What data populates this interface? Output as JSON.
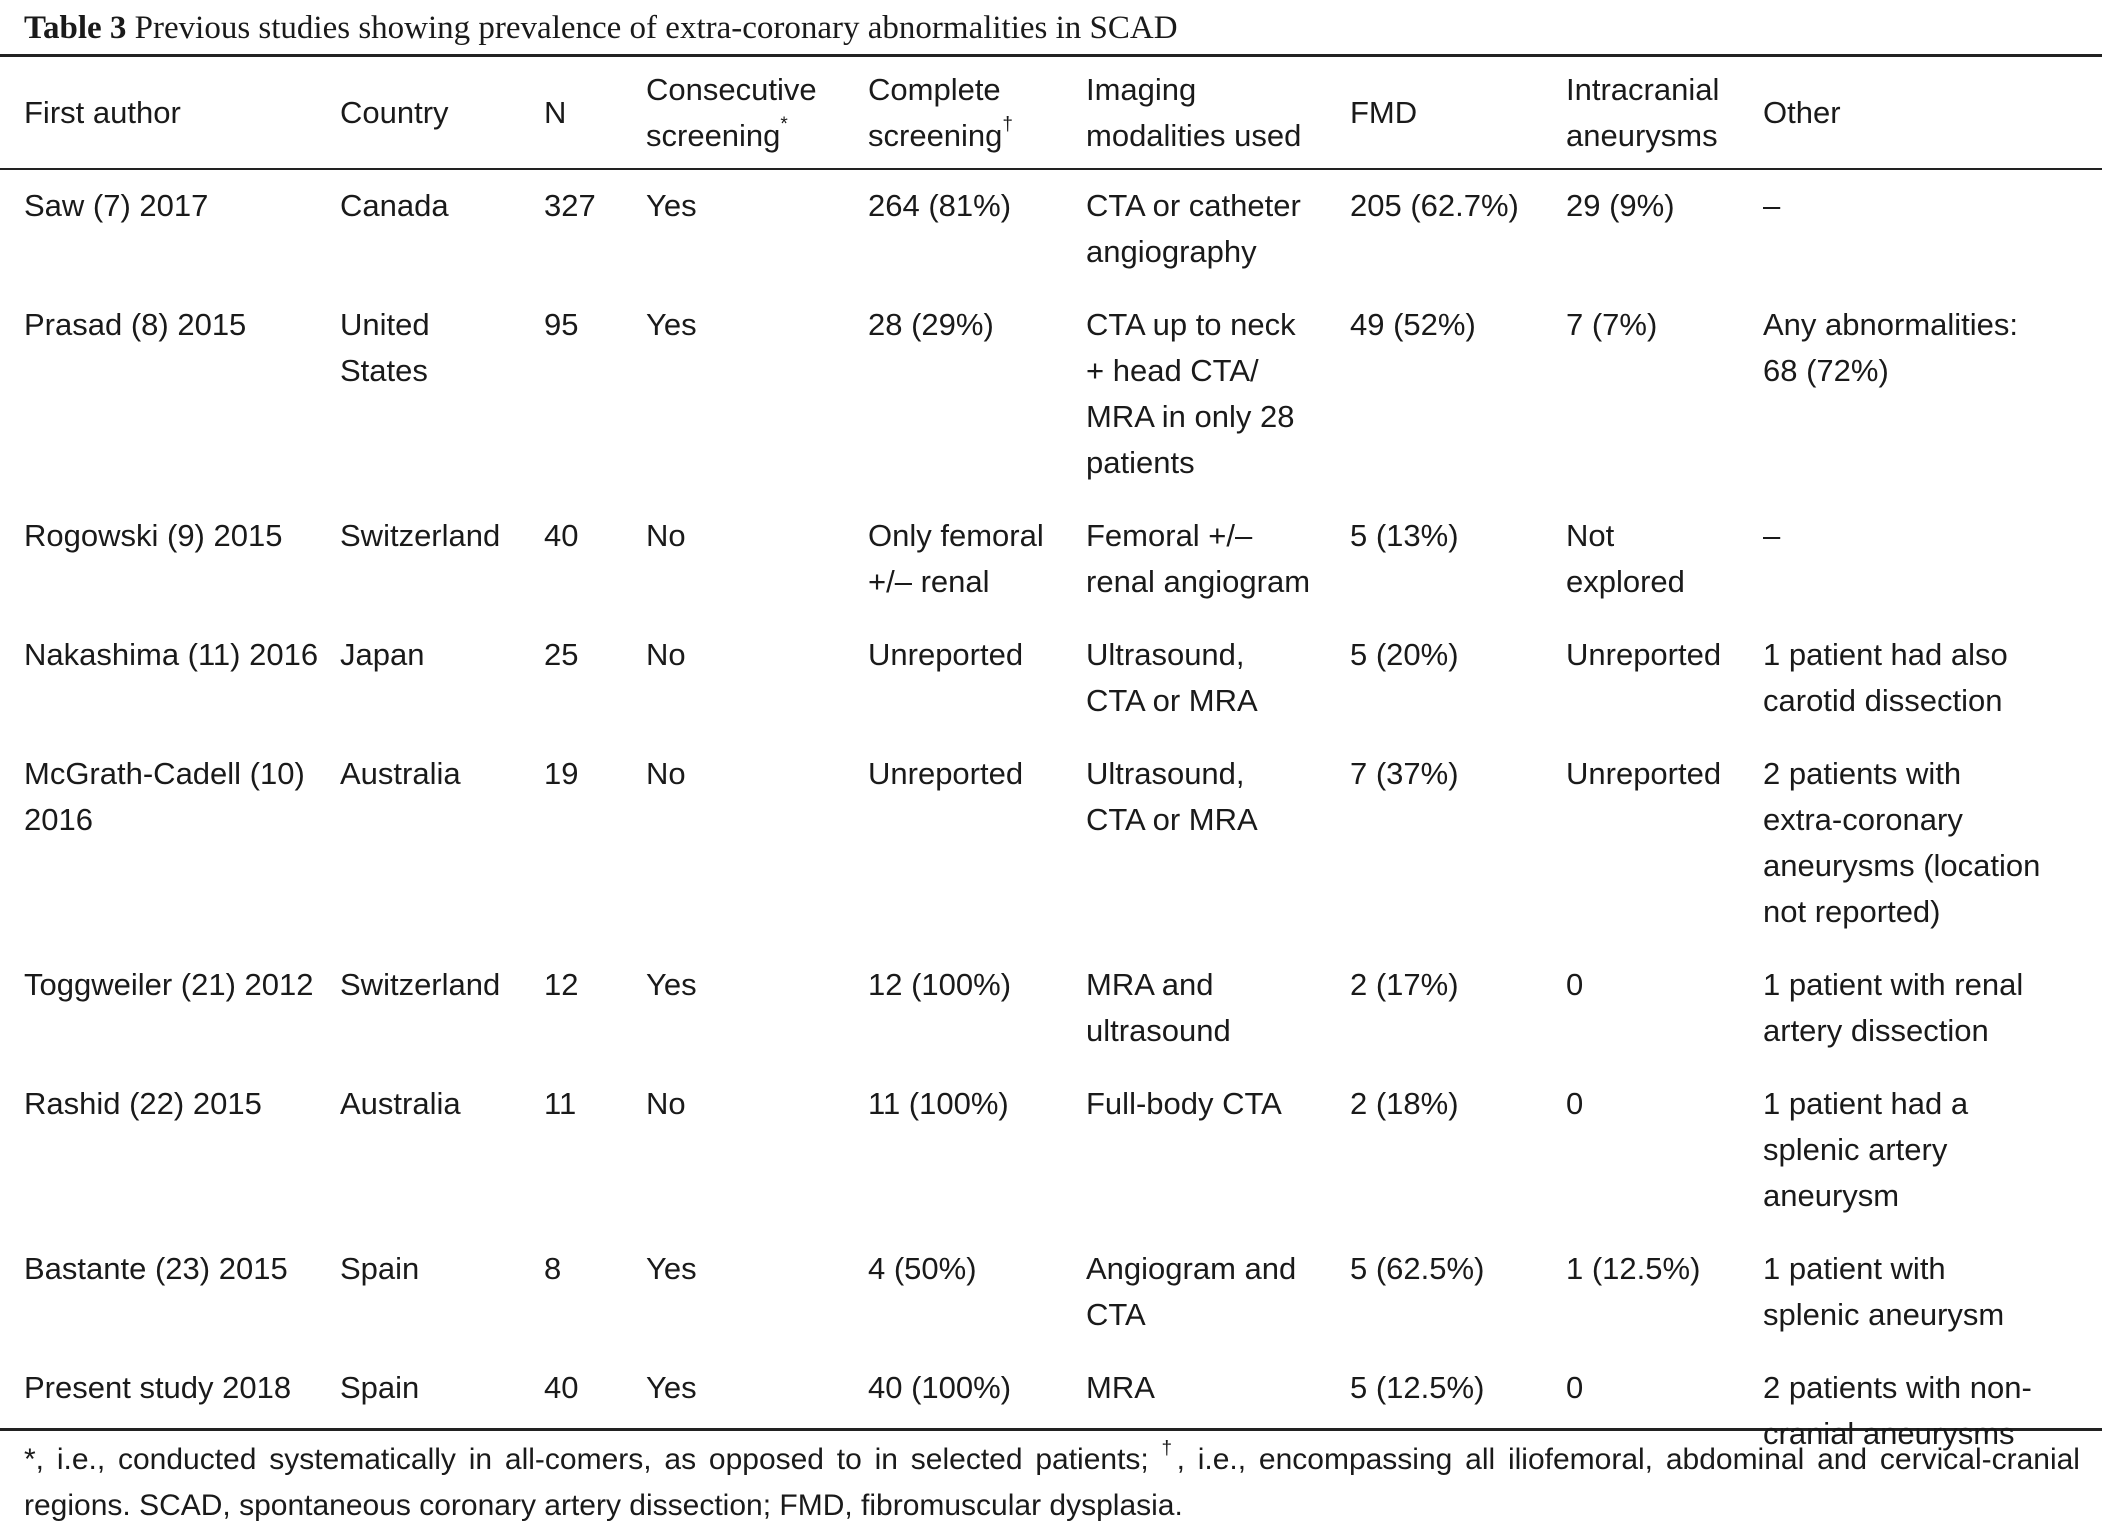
{
  "caption": {
    "label": "Table 3",
    "text": " Previous studies showing prevalence of extra-coronary abnormalities in SCAD"
  },
  "table": {
    "headers": [
      {
        "lines": [
          "First author"
        ]
      },
      {
        "lines": [
          "Country"
        ]
      },
      {
        "lines": [
          "N"
        ]
      },
      {
        "lines": [
          "Consecutive",
          "screening"
        ],
        "sup": "*"
      },
      {
        "lines": [
          "Complete",
          "screening"
        ],
        "sup": "†"
      },
      {
        "lines": [
          "Imaging",
          "modalities used"
        ]
      },
      {
        "lines": [
          "FMD"
        ]
      },
      {
        "lines": [
          "Intracranial",
          "aneurysms"
        ]
      },
      {
        "lines": [
          "Other"
        ]
      }
    ],
    "rows": [
      [
        [
          "Saw (7) 2017"
        ],
        [
          "Canada"
        ],
        [
          "327"
        ],
        [
          "Yes"
        ],
        [
          "264 (81%)"
        ],
        [
          "CTA or catheter",
          "angiography"
        ],
        [
          "205 (62.7%)"
        ],
        [
          "29 (9%)"
        ],
        [
          "–"
        ]
      ],
      [
        [
          "Prasad (8) 2015"
        ],
        [
          "United",
          "States"
        ],
        [
          "95"
        ],
        [
          "Yes"
        ],
        [
          "28 (29%)"
        ],
        [
          "CTA up to neck",
          "+ head CTA/",
          "MRA in only 28",
          "patients"
        ],
        [
          "49 (52%)"
        ],
        [
          "7 (7%)"
        ],
        [
          "Any abnormalities:",
          "68 (72%)"
        ]
      ],
      [
        [
          "Rogowski (9) 2015"
        ],
        [
          "Switzerland"
        ],
        [
          "40"
        ],
        [
          "No"
        ],
        [
          "Only femoral",
          "+/– renal"
        ],
        [
          "Femoral +/–",
          "renal angiogram"
        ],
        [
          "5 (13%)"
        ],
        [
          "Not",
          "explored"
        ],
        [
          "–"
        ]
      ],
      [
        [
          "Nakashima (11) 2016"
        ],
        [
          "Japan"
        ],
        [
          "25"
        ],
        [
          "No"
        ],
        [
          "Unreported"
        ],
        [
          "Ultrasound,",
          "CTA or MRA"
        ],
        [
          "5 (20%)"
        ],
        [
          "Unreported"
        ],
        [
          "1 patient had also",
          "carotid dissection"
        ]
      ],
      [
        [
          "McGrath-Cadell (10)",
          "2016"
        ],
        [
          "Australia"
        ],
        [
          "19"
        ],
        [
          "No"
        ],
        [
          "Unreported"
        ],
        [
          "Ultrasound,",
          "CTA or MRA"
        ],
        [
          "7 (37%)"
        ],
        [
          "Unreported"
        ],
        [
          "2 patients with",
          "extra-coronary",
          "aneurysms (location",
          "not reported)"
        ]
      ],
      [
        [
          "Toggweiler (21) 2012"
        ],
        [
          "Switzerland"
        ],
        [
          "12"
        ],
        [
          "Yes"
        ],
        [
          "12 (100%)"
        ],
        [
          "MRA and",
          "ultrasound"
        ],
        [
          "2 (17%)"
        ],
        [
          "0"
        ],
        [
          "1 patient with renal",
          "artery dissection"
        ]
      ],
      [
        [
          "Rashid (22) 2015"
        ],
        [
          "Australia"
        ],
        [
          "11"
        ],
        [
          "No"
        ],
        [
          "11 (100%)"
        ],
        [
          "Full-body CTA"
        ],
        [
          "2 (18%)"
        ],
        [
          "0"
        ],
        [
          "1 patient had a",
          "splenic artery",
          "aneurysm"
        ]
      ],
      [
        [
          "Bastante (23) 2015"
        ],
        [
          "Spain"
        ],
        [
          "8"
        ],
        [
          "Yes"
        ],
        [
          "4 (50%)"
        ],
        [
          "Angiogram and",
          "CTA"
        ],
        [
          "5 (62.5%)"
        ],
        [
          "1 (12.5%)"
        ],
        [
          "1 patient with",
          "splenic aneurysm"
        ]
      ],
      [
        [
          "Present study 2018"
        ],
        [
          "Spain"
        ],
        [
          "40"
        ],
        [
          "Yes"
        ],
        [
          "40 (100%)"
        ],
        [
          "MRA"
        ],
        [
          "5 (12.5%)"
        ],
        [
          "0"
        ],
        [
          "2 patients with non-",
          "cranial aneurysms"
        ]
      ]
    ]
  },
  "footnote": {
    "part1": "*, i.e., conducted systematically in all-comers, as opposed to in selected patients; ",
    "dagger": "†",
    "part2": ", i.e., encompassing all iliofemoral, abdominal and cervical-cranial regions. SCAD, spontaneous coronary artery dissection; FMD, fibromuscular dysplasia."
  }
}
